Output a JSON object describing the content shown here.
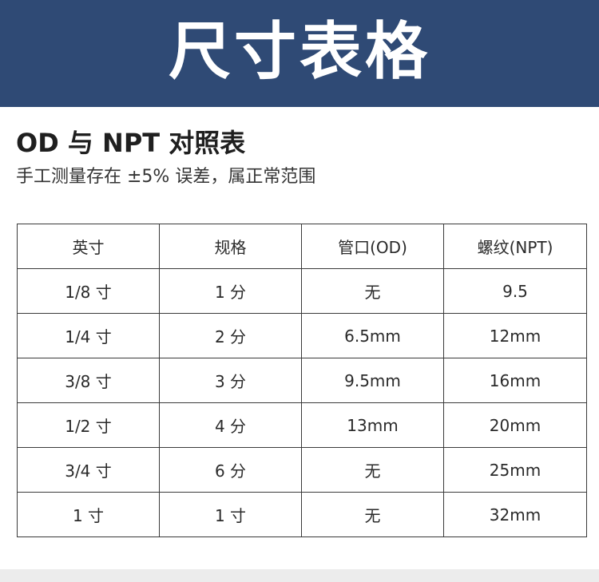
{
  "banner": {
    "title": "尺寸表格"
  },
  "section": {
    "title": "OD 与 NPT 对照表",
    "subtitle": "手工测量存在 ±5% 误差，属正常范围"
  },
  "table": {
    "headers": [
      "英寸",
      "规格",
      "管口(OD)",
      "螺纹(NPT)"
    ],
    "rows": [
      [
        "1/8 寸",
        "1 分",
        "无",
        "9.5"
      ],
      [
        "1/4 寸",
        "2 分",
        "6.5mm",
        "12mm"
      ],
      [
        "3/8 寸",
        "3 分",
        "9.5mm",
        "16mm"
      ],
      [
        "1/2 寸",
        "4 分",
        "13mm",
        "20mm"
      ],
      [
        "3/4 寸",
        "6 分",
        "无",
        "25mm"
      ],
      [
        "1 寸",
        "1 寸",
        "无",
        "32mm"
      ]
    ]
  },
  "colors": {
    "banner_background": "#2f4a75",
    "banner_text": "#ffffff",
    "table_border": "#3a3a3a"
  }
}
